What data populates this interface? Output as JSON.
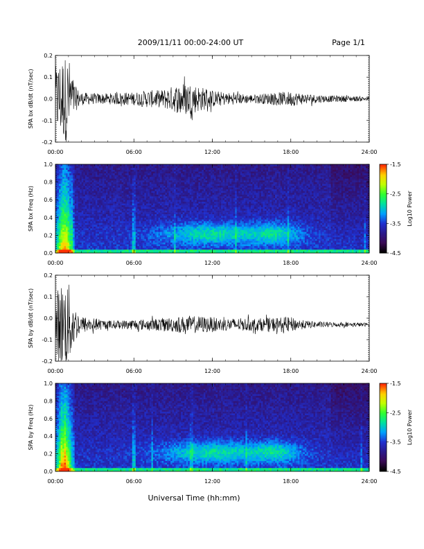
{
  "header": {
    "date_range": "2009/11/11  00:00-24:00 UT",
    "page": "Page 1/1"
  },
  "colors": {
    "trace": "#000000",
    "colormap": [
      "#000000",
      "#3a0a55",
      "#2a1a8c",
      "#2030d0",
      "#00a0ff",
      "#00e0a0",
      "#30ff30",
      "#c0ff00",
      "#ffd000",
      "#ff3000"
    ]
  },
  "chart_data": [
    {
      "type": "line",
      "ylabel": "SPA bx dB/dt (nT/sec)",
      "ylim": [
        -0.2,
        0.2
      ],
      "yticks": [
        "0.2",
        "0.1",
        "0.0",
        "-0.1",
        "-0.2"
      ],
      "xlim": [
        0,
        24
      ],
      "xticks": [
        "00:00",
        "06:00",
        "12:00",
        "18:00",
        "24:00"
      ],
      "series": [
        {
          "x": [
            0,
            0.5,
            1,
            1.5,
            2,
            3,
            4,
            5,
            6,
            7,
            8,
            9,
            10,
            11,
            12,
            13,
            14,
            15,
            16,
            17,
            18,
            19,
            20,
            21,
            22,
            23,
            24
          ],
          "y_envelope": [
            0.15,
            0.2,
            0.2,
            0.06,
            0.03,
            0.025,
            0.025,
            0.03,
            0.03,
            0.04,
            0.04,
            0.06,
            0.08,
            0.06,
            0.04,
            0.03,
            0.025,
            0.02,
            0.025,
            0.03,
            0.035,
            0.025,
            0.02,
            0.015,
            0.015,
            0.012,
            0.01
          ],
          "y_center": 0.0
        }
      ]
    },
    {
      "type": "heatmap",
      "ylabel": "SPA bx Freq (Hz)",
      "ylim": [
        0.0,
        1.0
      ],
      "yticks": [
        "1.0",
        "0.8",
        "0.6",
        "0.4",
        "0.2",
        "0.0"
      ],
      "xlim": [
        0,
        24
      ],
      "xticks": [
        "00:00",
        "06:00",
        "12:00",
        "18:00",
        "24:00"
      ],
      "colorbar": {
        "label": "Log10 Power",
        "range": [
          -4.5,
          -1.5
        ],
        "ticks": [
          "-1.5",
          "-2.5",
          "-3.5",
          "-4.5"
        ]
      }
    },
    {
      "type": "line",
      "ylabel": "SPA by dB/dt (nT/sec)",
      "ylim": [
        -0.2,
        0.2
      ],
      "yticks": [
        "0.2",
        "0.1",
        "0.0",
        "-0.1",
        "-0.2"
      ],
      "xlim": [
        0,
        24
      ],
      "xticks": [
        "00:00",
        "06:00",
        "12:00",
        "18:00",
        "24:00"
      ],
      "series": [
        {
          "x": [
            0,
            0.5,
            1,
            1.5,
            2,
            3,
            4,
            5,
            6,
            7,
            8,
            9,
            10,
            11,
            12,
            13,
            14,
            15,
            16,
            17,
            18,
            19,
            20,
            21,
            22,
            23,
            24
          ],
          "y_envelope": [
            0.15,
            0.2,
            0.2,
            0.08,
            0.04,
            0.03,
            0.02,
            0.02,
            0.025,
            0.025,
            0.03,
            0.035,
            0.04,
            0.04,
            0.035,
            0.03,
            0.03,
            0.03,
            0.03,
            0.035,
            0.035,
            0.02,
            0.015,
            0.012,
            0.01,
            0.01,
            0.008
          ],
          "y_center": -0.03
        }
      ]
    },
    {
      "type": "heatmap",
      "ylabel": "SPA by Freq (Hz)",
      "ylim": [
        0.0,
        1.0
      ],
      "yticks": [
        "1.0",
        "0.8",
        "0.6",
        "0.4",
        "0.2",
        "0.0"
      ],
      "xlim": [
        0,
        24
      ],
      "xticks": [
        "00:00",
        "06:00",
        "12:00",
        "18:00",
        "24:00"
      ],
      "colorbar": {
        "label": "Log10 Power",
        "range": [
          -4.5,
          -1.5
        ],
        "ticks": [
          "-1.5",
          "-2.5",
          "-3.5",
          "-4.5"
        ]
      }
    }
  ],
  "xlabel": "Universal Time (hh:mm)"
}
